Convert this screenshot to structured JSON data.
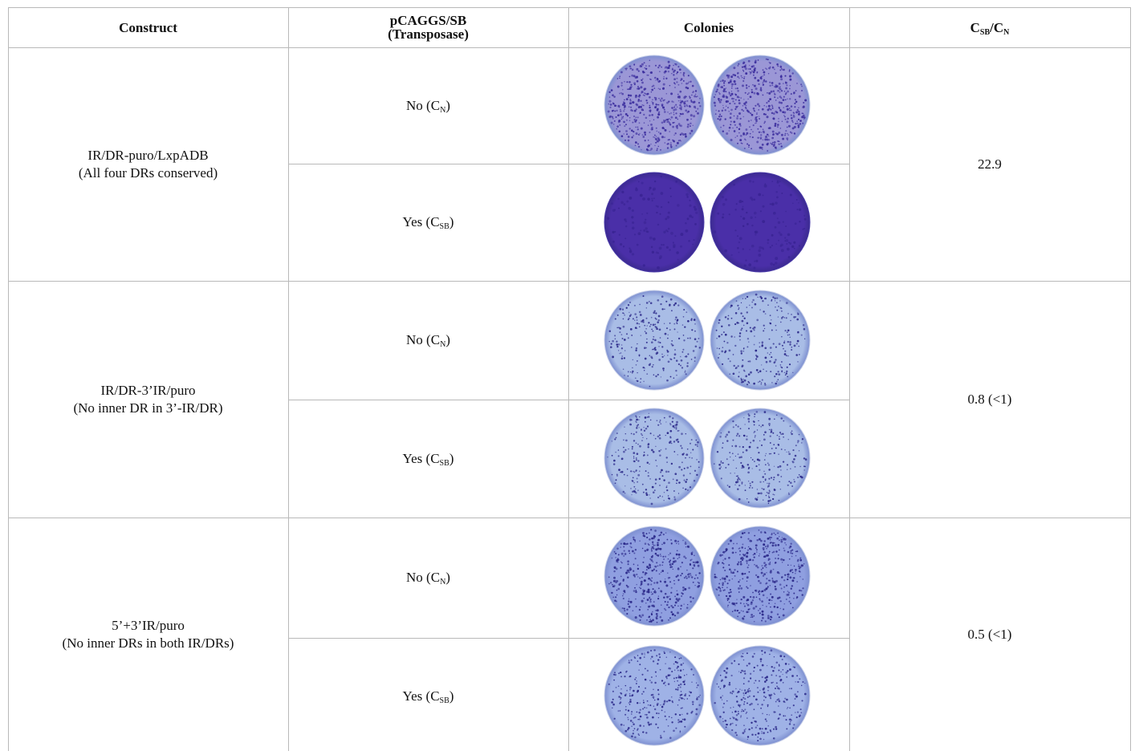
{
  "headers": {
    "construct": "Construct",
    "transposase_line1": "pCAGGS/SB",
    "transposase_line2": "(Transposase)",
    "colonies": "Colonies",
    "ratio_main": "C",
    "ratio_sub1": "SB",
    "ratio_slash": "/C",
    "ratio_sub2": "N"
  },
  "rows": [
    {
      "construct_line1": "IR/DR-puro/LxpADB",
      "construct_line2": "(All four DRs conserved)",
      "ratio": "22.9",
      "no_label": "No (C",
      "no_sub": "N",
      "yes_label": "Yes (C",
      "yes_sub": "SB",
      "close": ")"
    },
    {
      "construct_line1": "IR/DR-3’IR/puro",
      "construct_line2": "(No inner DR in 3’-IR/DR)",
      "ratio": "0.8 (<1)",
      "no_label": "No (C",
      "no_sub": "N",
      "yes_label": "Yes (C",
      "yes_sub": "SB",
      "close": ")"
    },
    {
      "construct_line1": "5’+3’IR/puro",
      "construct_line2": "(No inner DRs in both IR/DRs)",
      "ratio": "0.5 (<1)",
      "no_label": "No (C",
      "no_sub": "N",
      "yes_label": "Yes (C",
      "yes_sub": "SB",
      "close": ")"
    }
  ],
  "dish_colors": {
    "dense_purple": "#4a2fa8",
    "light_blue_bg": "#a9bde6",
    "mid_blue_bg": "#8f9fe0",
    "colony": "#2c2a8a"
  }
}
